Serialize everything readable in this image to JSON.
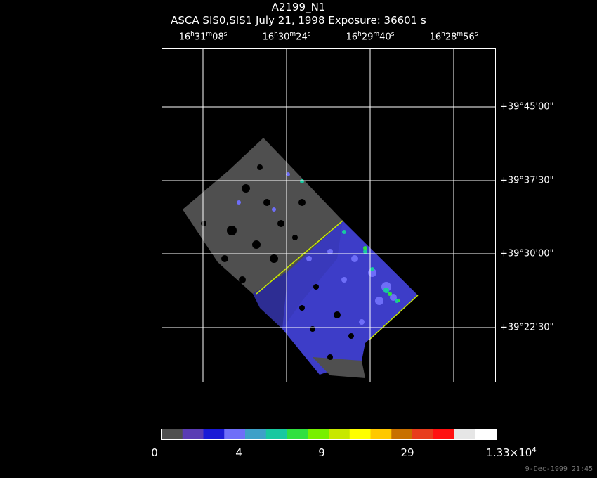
{
  "header": {
    "title": "A2199_N1",
    "subtitle": "ASCA SIS0,SIS1 July 21, 1998 Exposure: 36601 s"
  },
  "ra_ticks": [
    {
      "h": "16",
      "m": "31",
      "s": "08"
    },
    {
      "h": "16",
      "m": "30",
      "s": "24"
    },
    {
      "h": "16",
      "m": "29",
      "s": "40"
    },
    {
      "h": "16",
      "m": "28",
      "s": "56"
    }
  ],
  "dec_ticks": [
    "+39°45'00\"",
    "+39°37'30\"",
    "+39°30'00\"",
    "+39°22'30\""
  ],
  "colorbar": {
    "labels": [
      "0",
      "4",
      "9",
      "29"
    ],
    "max_mantissa": "1.33×10",
    "max_exp": "4",
    "colors": [
      "#4f4f4f",
      "#5a3cb4",
      "#1a1ad6",
      "#6e6ef8",
      "#3ea0c8",
      "#18c8a0",
      "#30e040",
      "#78f000",
      "#c8e800",
      "#ffff00",
      "#ffc800",
      "#c87000",
      "#e83c1c",
      "#ff1010",
      "#e6e6e6",
      "#ffffff"
    ]
  },
  "footer": "9-Dec-1999 21:45"
}
